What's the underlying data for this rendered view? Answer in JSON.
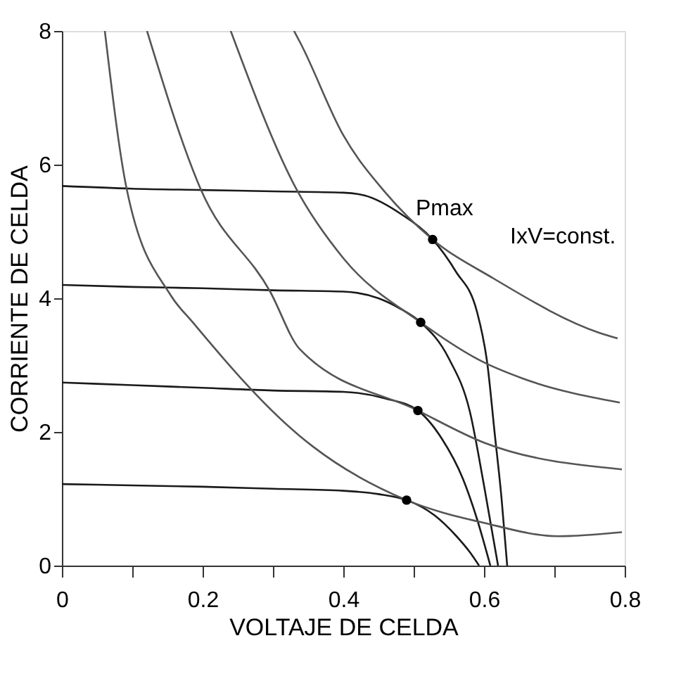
{
  "chart_data": {
    "type": "line",
    "xlabel": "VOLTAJE DE CELDA",
    "ylabel": "CORRIENTE DE CELDA",
    "xlim": [
      0,
      0.8
    ],
    "ylim": [
      0,
      8
    ],
    "xticks": [
      0,
      {
        "value": 0.1,
        "label": null
      },
      0.2,
      {
        "value": 0.3,
        "label": null
      },
      0.4,
      {
        "value": 0.5,
        "label": null
      },
      0.6,
      {
        "value": 0.7,
        "label": null
      },
      0.8
    ],
    "yticks": [
      0,
      2,
      4,
      6,
      8
    ],
    "grid": false,
    "marker": "none",
    "line_style": "solid",
    "series": [
      {
        "color": "#1a1a1a",
        "x": [
          0,
          0.1,
          0.2,
          0.3,
          0.4,
          0.43,
          0.485,
          0.527,
          0.56,
          0.59,
          0.605,
          0.615,
          0.625,
          0.633
        ],
        "values": [
          5.68,
          5.64,
          5.62,
          5.6,
          5.58,
          5.54,
          5.24,
          4.88,
          4.4,
          3.8,
          3.0,
          2.0,
          1.0,
          0
        ]
      },
      {
        "color": "#1a1a1a",
        "x": [
          0,
          0.1,
          0.2,
          0.3,
          0.4,
          0.45,
          0.48,
          0.51,
          0.55,
          0.58,
          0.6,
          0.62
        ],
        "values": [
          4.2,
          4.17,
          4.15,
          4.12,
          4.1,
          4.0,
          3.85,
          3.64,
          3.1,
          2.3,
          1.2,
          0
        ]
      },
      {
        "color": "#1a1a1a",
        "x": [
          0,
          0.1,
          0.2,
          0.3,
          0.4,
          0.46,
          0.506,
          0.54,
          0.57,
          0.59,
          0.609
        ],
        "values": [
          2.74,
          2.7,
          2.66,
          2.62,
          2.6,
          2.5,
          2.32,
          1.9,
          1.3,
          0.7,
          0
        ]
      },
      {
        "color": "#1a1a1a",
        "x": [
          0,
          0.1,
          0.2,
          0.3,
          0.4,
          0.45,
          0.49,
          0.53,
          0.56,
          0.58,
          0.593
        ],
        "values": [
          1.22,
          1.2,
          1.18,
          1.15,
          1.12,
          1.07,
          0.98,
          0.75,
          0.45,
          0.2,
          0
        ]
      },
      {
        "color": "#555555",
        "x": [
          0.33,
          0.34,
          0.4,
          0.46,
          0.527,
          0.613,
          0.765,
          0.79
        ],
        "values": [
          8,
          7.8,
          6.44,
          5.58,
          4.88,
          4.3,
          3.48,
          3.4
        ]
      },
      {
        "color": "#555555",
        "x": [
          0.24,
          0.333,
          0.4,
          0.51,
          0.6,
          0.655,
          0.793
        ],
        "values": [
          8,
          5.64,
          4.6,
          3.64,
          3.04,
          2.8,
          2.44
        ]
      },
      {
        "color": "#555555",
        "x": [
          0.121,
          0.197,
          0.296,
          0.338,
          0.506,
          0.6,
          0.796
        ],
        "values": [
          8,
          5.64,
          4.1,
          3.24,
          2.32,
          1.84,
          1.44
        ]
      },
      {
        "color": "#555555",
        "x": [
          0.061,
          0.092,
          0.155,
          0.186,
          0.338,
          0.357,
          0.49,
          0.6,
          0.706,
          0.796
        ],
        "values": [
          8,
          5.64,
          4.04,
          3.64,
          1.94,
          1.78,
          0.98,
          0.64,
          0.44,
          0.5
        ]
      },
      {
        "type": "scatter",
        "marker": "circle",
        "color": "#000000",
        "x": [
          0.527,
          0.51,
          0.506,
          0.49
        ],
        "values": [
          4.88,
          3.64,
          2.32,
          0.98
        ]
      }
    ],
    "annotations": [
      {
        "text": "Pmax",
        "x": 0.527,
        "y": 4.88
      },
      {
        "text": "IxV=const.",
        "x": 0.613,
        "y": 4.3
      }
    ]
  }
}
